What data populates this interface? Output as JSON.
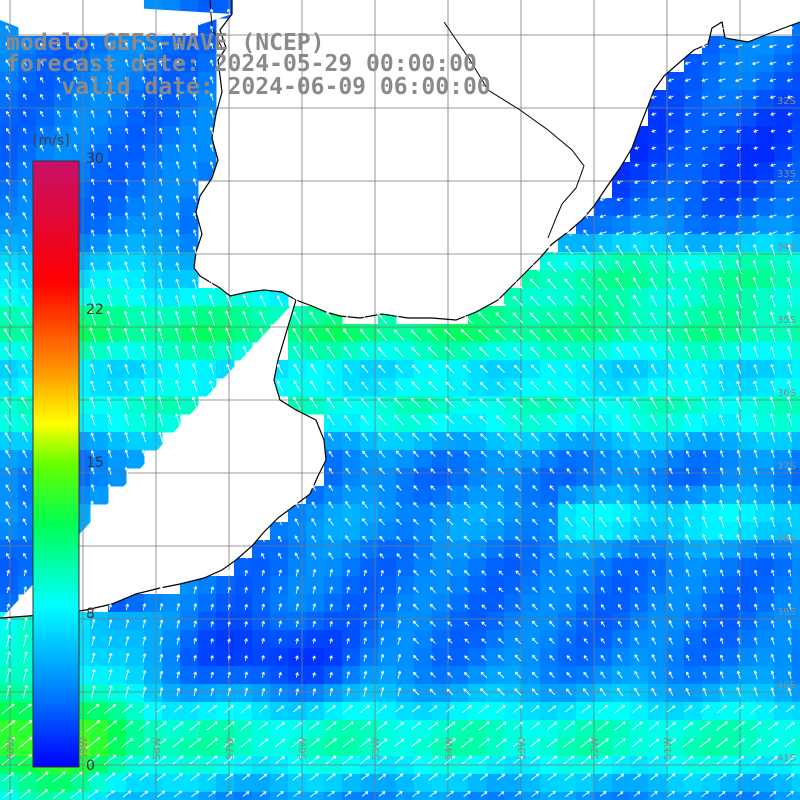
{
  "header": {
    "line1": "modelo GEFS-WAVE (NCEP)",
    "line2": "forecast date: 2024-05-29 00:00:00",
    "line3": "    valid date: 2024-06-09 06:00:00"
  },
  "colorbar": {
    "unit": "[m/s]",
    "ticks": [
      "30",
      "22",
      "15",
      "8",
      "0"
    ],
    "vmin": 0,
    "vmax": 30,
    "stops": [
      {
        "value": 0,
        "color": "#0000ff"
      },
      {
        "value": 4,
        "color": "#0088ff"
      },
      {
        "value": 8,
        "color": "#00ffff"
      },
      {
        "value": 12,
        "color": "#00ff55"
      },
      {
        "value": 15,
        "color": "#66ff00"
      },
      {
        "value": 17,
        "color": "#ffff00"
      },
      {
        "value": 20,
        "color": "#ff8800"
      },
      {
        "value": 24,
        "color": "#ff0000"
      },
      {
        "value": 30,
        "color": "#c8106a"
      }
    ]
  },
  "map": {
    "field": "wind speed",
    "land_color": "#ffffff",
    "grid_color": "#7a7a7a",
    "coast_color": "#000000",
    "lat_labels": [
      "32S",
      "33S",
      "34S",
      "35S",
      "36S",
      "37S",
      "38S",
      "39S",
      "40S",
      "41S"
    ],
    "lon_labels": [
      "60W",
      "59W",
      "58W",
      "57W",
      "56W",
      "55W",
      "54W",
      "53W",
      "52W",
      "51W"
    ]
  }
}
